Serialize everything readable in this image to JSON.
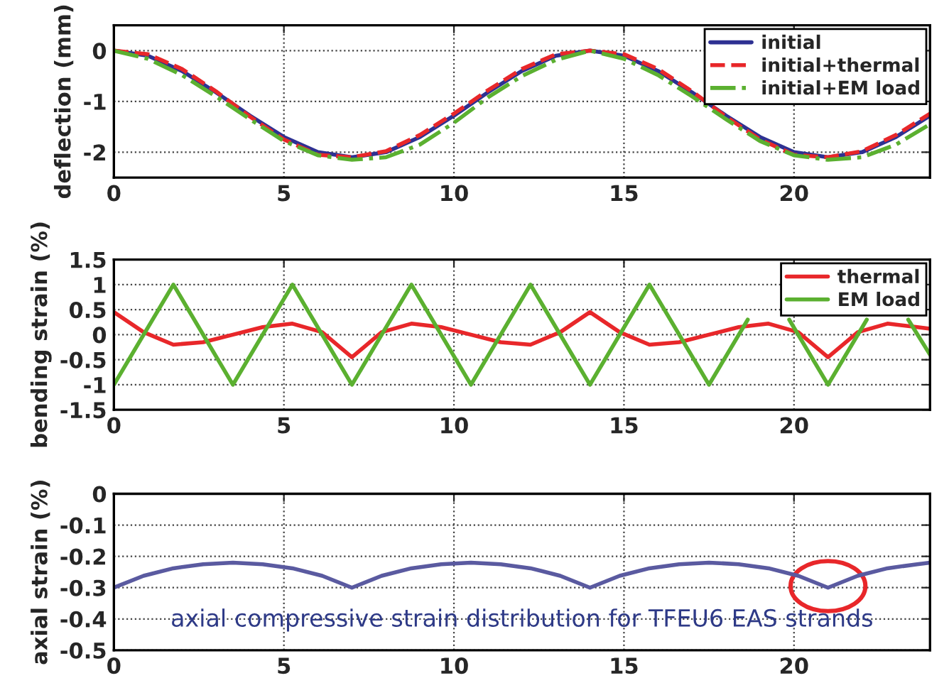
{
  "chart_data": [
    {
      "type": "line",
      "ylabel": "deflection (mm)",
      "xlim": [
        0,
        24
      ],
      "ylim": [
        -2.5,
        0.5
      ],
      "xticks": [
        0,
        5,
        10,
        15,
        20
      ],
      "yticks": [
        -2,
        -1,
        0
      ],
      "grid": true,
      "legend": "top right",
      "x": [
        0,
        1,
        2,
        3,
        4,
        5,
        6,
        7,
        8,
        9,
        10,
        11,
        12,
        13,
        14,
        15,
        16,
        17,
        18,
        19,
        20,
        21,
        22,
        23,
        24
      ],
      "series": [
        {
          "name": "initial",
          "color": "#2e3192",
          "line_style": "solid",
          "values": [
            0,
            -0.1,
            -0.4,
            -0.82,
            -1.28,
            -1.7,
            -2.0,
            -2.1,
            -2.0,
            -1.7,
            -1.28,
            -0.82,
            -0.4,
            -0.1,
            0,
            -0.1,
            -0.4,
            -0.82,
            -1.28,
            -1.7,
            -2.0,
            -2.1,
            -2.0,
            -1.7,
            -1.28
          ]
        },
        {
          "name": "initial+thermal",
          "color": "#e8272a",
          "line_style": "dashed",
          "values": [
            0,
            -0.07,
            -0.36,
            -0.8,
            -1.3,
            -1.75,
            -2.05,
            -2.1,
            -1.98,
            -1.66,
            -1.24,
            -0.78,
            -0.36,
            -0.07,
            0,
            -0.07,
            -0.36,
            -0.8,
            -1.3,
            -1.75,
            -2.05,
            -2.1,
            -1.98,
            -1.66,
            -1.24
          ]
        },
        {
          "name": "initial+EM load",
          "color": "#5bb030",
          "line_style": "dashdot",
          "values": [
            0,
            -0.16,
            -0.48,
            -0.9,
            -1.35,
            -1.78,
            -2.06,
            -2.15,
            -2.1,
            -1.85,
            -1.42,
            -0.92,
            -0.5,
            -0.18,
            0,
            -0.16,
            -0.48,
            -0.9,
            -1.35,
            -1.78,
            -2.06,
            -2.15,
            -2.1,
            -1.85,
            -1.45
          ]
        }
      ]
    },
    {
      "type": "line",
      "ylabel": "bending strain (%)",
      "xlim": [
        0,
        24
      ],
      "ylim": [
        -1.5,
        1.5
      ],
      "xticks": [
        0,
        5,
        10,
        15,
        20
      ],
      "yticks": [
        -1.5,
        -1,
        -0.5,
        0,
        0.5,
        1,
        1.5
      ],
      "grid": true,
      "legend": "top right",
      "series": [
        {
          "name": "thermal",
          "color": "#e8272a",
          "line_style": "solid",
          "x": [
            0,
            0.875,
            1.75,
            2.625,
            3.5,
            4.375,
            5.25,
            6.125,
            7,
            7.875,
            8.75,
            9.625,
            10.5,
            11.375,
            12.25,
            13.125,
            14,
            14.875,
            15.75,
            16.625,
            17.5,
            18.375,
            19.25,
            20.125,
            21,
            21.875,
            22.75,
            23.625,
            24
          ],
          "values": [
            0.45,
            0.05,
            -0.2,
            -0.15,
            0,
            0.15,
            0.22,
            0.05,
            -0.45,
            0.05,
            0.22,
            0.15,
            0,
            -0.15,
            -0.2,
            0.05,
            0.45,
            0.05,
            -0.2,
            -0.15,
            0,
            0.15,
            0.22,
            0.05,
            -0.45,
            0.05,
            0.22,
            0.15,
            0.12
          ]
        },
        {
          "name": "EM load",
          "color": "#5bb030",
          "line_style": "solid",
          "x": [
            0,
            1.75,
            3.5,
            5.25,
            7,
            8.75,
            10.5,
            12.25,
            14,
            15.75,
            17.5,
            18.64,
            19.25,
            19.86,
            21,
            22.14,
            22.75,
            23.36,
            24
          ],
          "values": [
            -1,
            1,
            -1,
            1,
            -1,
            1,
            -1,
            1,
            -1,
            1,
            -1,
            0.3,
            null,
            0.3,
            -1,
            0.3,
            null,
            0.3,
            -0.4
          ]
        }
      ]
    },
    {
      "type": "line",
      "ylabel": "axial strain (%)",
      "xlim": [
        0,
        24
      ],
      "ylim": [
        -0.5,
        0
      ],
      "xticks": [
        0,
        5,
        10,
        15,
        20
      ],
      "yticks": [
        -0.5,
        -0.4,
        -0.3,
        -0.2,
        -0.1,
        0
      ],
      "grid": true,
      "annotations": [
        "axial compressive strain distribution for TFEU6 EAS strands"
      ],
      "series": [
        {
          "color": "#5a5aa0",
          "line_style": "solid",
          "x": [
            0,
            0.875,
            1.75,
            2.625,
            3.5,
            4.375,
            5.25,
            6.125,
            7,
            7.875,
            8.75,
            9.625,
            10.5,
            11.375,
            12.25,
            13.125,
            14,
            14.875,
            15.75,
            16.625,
            17.5,
            18.375,
            19.25,
            20.125,
            21,
            21.875,
            22.75,
            23.625,
            24
          ],
          "values": [
            -0.3,
            -0.262,
            -0.238,
            -0.225,
            -0.22,
            -0.225,
            -0.238,
            -0.262,
            -0.3,
            -0.262,
            -0.238,
            -0.225,
            -0.22,
            -0.225,
            -0.238,
            -0.262,
            -0.3,
            -0.262,
            -0.238,
            -0.225,
            -0.22,
            -0.225,
            -0.238,
            -0.262,
            -0.3,
            -0.262,
            -0.238,
            -0.225,
            -0.22
          ]
        }
      ]
    }
  ]
}
